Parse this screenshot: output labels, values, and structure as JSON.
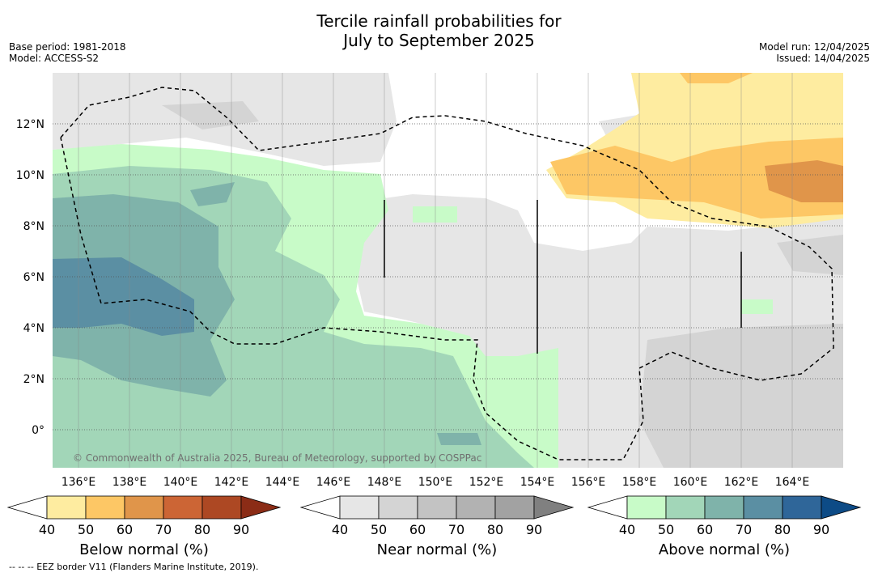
{
  "title_line1": "Tercile rainfall probabilities for",
  "title_line2": "July to September 2025",
  "base_period": "Base period: 1981-2018",
  "model": "Model: ACCESS-S2",
  "model_run": "Model run: 12/04/2025",
  "issued": "Issued: 14/04/2025",
  "copyright": "© Commonwealth of Australia 2025, Bureau of Meteorology, supported by COSPPac",
  "footnote": "--  --  -- EEZ border V11 (Flanders Marine Institute, 2019).",
  "lat_labels": [
    "12°N",
    "10°N",
    "8°N",
    "6°N",
    "4°N",
    "2°N",
    "0°"
  ],
  "lon_labels": [
    "136°E",
    "138°E",
    "140°E",
    "142°E",
    "144°E",
    "146°E",
    "148°E",
    "150°E",
    "152°E",
    "154°E",
    "156°E",
    "158°E",
    "160°E",
    "162°E",
    "164°E"
  ],
  "colorbars": [
    {
      "title": "Below normal (%)",
      "ticks": [
        "40",
        "50",
        "60",
        "70",
        "80",
        "90"
      ],
      "colors": [
        "#ffffff",
        "#feeca0",
        "#fdc765",
        "#e0954a",
        "#cc6535",
        "#ad4823",
        "#8b2c16"
      ]
    },
    {
      "title": "Near normal (%)",
      "ticks": [
        "40",
        "50",
        "60",
        "70",
        "80",
        "90"
      ],
      "colors": [
        "#ffffff",
        "#e6e6e6",
        "#d4d4d4",
        "#c3c3c3",
        "#b2b2b2",
        "#a2a2a2",
        "#808080"
      ]
    },
    {
      "title": "Above normal (%)",
      "ticks": [
        "40",
        "50",
        "60",
        "70",
        "80",
        "90"
      ],
      "colors": [
        "#ffffff",
        "#c8fbc8",
        "#a2d6b8",
        "#7fb3aa",
        "#5b8fa3",
        "#2f6699",
        "#0d4b86"
      ]
    }
  ]
}
